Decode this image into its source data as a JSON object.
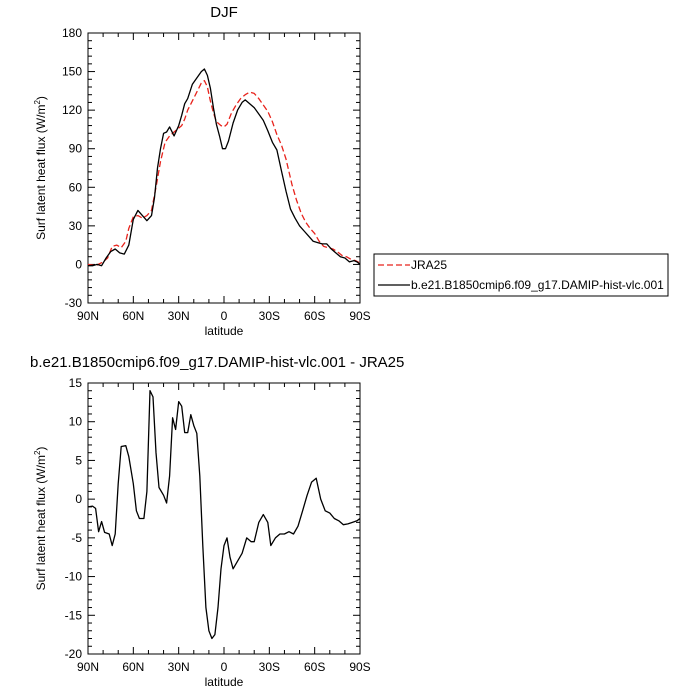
{
  "chart_data": [
    {
      "type": "line",
      "title": "DJF",
      "xlabel": "latitude",
      "ylabel": "Surf latent heat flux (W/m²)",
      "ylabel_main": "Surf latent heat flux (W/m",
      "ylabel_sup": "2",
      "ylabel_close": ")",
      "xlim": [
        90,
        -90
      ],
      "ylim": [
        -30,
        180
      ],
      "xticks": [
        90,
        60,
        30,
        0,
        -30,
        -60,
        -90
      ],
      "xtick_labels": [
        "90N",
        "60N",
        "30N",
        "0",
        "30S",
        "60S",
        "90S"
      ],
      "yticks": [
        -30,
        0,
        30,
        60,
        90,
        120,
        150,
        180
      ],
      "ytick_labels": [
        "-30",
        "0",
        "30",
        "60",
        "90",
        "120",
        "150",
        "180"
      ],
      "legend_position": "right",
      "series": [
        {
          "name": "JRA25",
          "color": "#e8231c",
          "dash": true,
          "points": [
            [
              90,
              0
            ],
            [
              85,
              -1
            ],
            [
              80,
              2
            ],
            [
              77,
              5
            ],
            [
              74,
              14
            ],
            [
              71,
              15
            ],
            [
              68,
              13
            ],
            [
              65,
              18
            ],
            [
              63,
              28
            ],
            [
              60,
              37
            ],
            [
              57,
              38
            ],
            [
              54,
              36
            ],
            [
              51,
              38
            ],
            [
              48,
              42
            ],
            [
              45,
              60
            ],
            [
              42,
              80
            ],
            [
              39,
              95
            ],
            [
              36,
              100
            ],
            [
              33,
              103
            ],
            [
              30,
              106
            ],
            [
              28,
              108
            ],
            [
              26,
              113
            ],
            [
              24,
              120
            ],
            [
              21,
              127
            ],
            [
              18,
              134
            ],
            [
              15,
              141
            ],
            [
              13,
              143
            ],
            [
              11,
              138
            ],
            [
              9,
              127
            ],
            [
              7,
              118
            ],
            [
              5,
              111
            ],
            [
              2,
              108
            ],
            [
              0,
              107
            ],
            [
              -2,
              109
            ],
            [
              -5,
              118
            ],
            [
              -8,
              124
            ],
            [
              -11,
              129
            ],
            [
              -14,
              132
            ],
            [
              -17,
              134
            ],
            [
              -20,
              133
            ],
            [
              -23,
              129
            ],
            [
              -26,
              124
            ],
            [
              -29,
              119
            ],
            [
              -32,
              111
            ],
            [
              -35,
              101
            ],
            [
              -38,
              93
            ],
            [
              -41,
              82
            ],
            [
              -45,
              62
            ],
            [
              -48,
              50
            ],
            [
              -51,
              40
            ],
            [
              -54,
              33
            ],
            [
              -57,
              28
            ],
            [
              -60,
              24
            ],
            [
              -63,
              18
            ],
            [
              -66,
              14
            ],
            [
              -69,
              13
            ],
            [
              -72,
              12
            ],
            [
              -75,
              10
            ],
            [
              -78,
              7
            ],
            [
              -81,
              6
            ],
            [
              -84,
              4
            ],
            [
              -87,
              3
            ],
            [
              -90,
              1
            ]
          ]
        },
        {
          "name": "b.e21.B1850cmip6.f09_g17.DAMIP-hist-vlc.001",
          "color": "#000000",
          "dash": false,
          "points": [
            [
              90,
              -1
            ],
            [
              87,
              -1
            ],
            [
              84,
              0
            ],
            [
              81,
              -1
            ],
            [
              78,
              5
            ],
            [
              75,
              10
            ],
            [
              72,
              12
            ],
            [
              69,
              9
            ],
            [
              66,
              8
            ],
            [
              63,
              15
            ],
            [
              60,
              35
            ],
            [
              57,
              42
            ],
            [
              54,
              38
            ],
            [
              51,
              34
            ],
            [
              48,
              38
            ],
            [
              46,
              52
            ],
            [
              44,
              75
            ],
            [
              42,
              90
            ],
            [
              40,
              102
            ],
            [
              38,
              103
            ],
            [
              36,
              107
            ],
            [
              33,
              100
            ],
            [
              30,
              108
            ],
            [
              28,
              116
            ],
            [
              26,
              125
            ],
            [
              24,
              129
            ],
            [
              21,
              140
            ],
            [
              18,
              145
            ],
            [
              15,
              150
            ],
            [
              13,
              152
            ],
            [
              11,
              147
            ],
            [
              9,
              137
            ],
            [
              7,
              122
            ],
            [
              5,
              109
            ],
            [
              3,
              100
            ],
            [
              1,
              90
            ],
            [
              -1,
              90
            ],
            [
              -3,
              96
            ],
            [
              -6,
              110
            ],
            [
              -9,
              120
            ],
            [
              -12,
              126
            ],
            [
              -14,
              128
            ],
            [
              -17,
              125
            ],
            [
              -20,
              122
            ],
            [
              -23,
              117
            ],
            [
              -26,
              112
            ],
            [
              -29,
              104
            ],
            [
              -32,
              95
            ],
            [
              -35,
              89
            ],
            [
              -38,
              73
            ],
            [
              -41,
              57
            ],
            [
              -44,
              43
            ],
            [
              -47,
              36
            ],
            [
              -50,
              30
            ],
            [
              -53,
              26
            ],
            [
              -56,
              22
            ],
            [
              -59,
              18
            ],
            [
              -62,
              17
            ],
            [
              -65,
              16
            ],
            [
              -68,
              16
            ],
            [
              -71,
              12
            ],
            [
              -74,
              9
            ],
            [
              -77,
              6
            ],
            [
              -80,
              5
            ],
            [
              -83,
              2
            ],
            [
              -86,
              3
            ],
            [
              -88,
              2
            ],
            [
              -90,
              0
            ]
          ]
        }
      ]
    },
    {
      "type": "line",
      "title": "b.e21.B1850cmip6.f09_g17.DAMIP-hist-vlc.001 - JRA25",
      "xlabel": "latitude",
      "ylabel": "Surf latent heat flux (W/m²)",
      "ylabel_main": "Surf latent heat flux (W/m",
      "ylabel_sup": "2",
      "ylabel_close": ")",
      "xlim": [
        90,
        -90
      ],
      "ylim": [
        -20,
        15
      ],
      "xticks": [
        90,
        60,
        30,
        0,
        -30,
        -60,
        -90
      ],
      "xtick_labels": [
        "90N",
        "60N",
        "30N",
        "0",
        "30S",
        "60S",
        "90S"
      ],
      "yticks": [
        -20,
        -15,
        -10,
        -5,
        0,
        5,
        10,
        15
      ],
      "ytick_labels": [
        "-20",
        "-15",
        "-10",
        "-5",
        "0",
        "5",
        "10",
        "15"
      ],
      "series": [
        {
          "color": "#000000",
          "dash": false,
          "points": [
            [
              90,
              -1.0
            ],
            [
              87,
              -0.9
            ],
            [
              85,
              -1.2
            ],
            [
              83,
              -4.2
            ],
            [
              81,
              -2.9
            ],
            [
              79,
              -4.3
            ],
            [
              76,
              -4.5
            ],
            [
              74,
              -6
            ],
            [
              72,
              -4.5
            ],
            [
              70,
              2
            ],
            [
              68,
              6.8
            ],
            [
              65,
              6.9
            ],
            [
              63,
              5.5
            ],
            [
              60,
              2
            ],
            [
              58,
              -1.5
            ],
            [
              56,
              -2.5
            ],
            [
              53,
              -2.5
            ],
            [
              51,
              1
            ],
            [
              49,
              14
            ],
            [
              47,
              13.2
            ],
            [
              45,
              6
            ],
            [
              43,
              1.5
            ],
            [
              40,
              0.5
            ],
            [
              38,
              -0.5
            ],
            [
              36,
              3
            ],
            [
              34,
              10.5
            ],
            [
              32,
              9
            ],
            [
              30,
              12.6
            ],
            [
              28,
              12
            ],
            [
              26,
              8.6
            ],
            [
              24,
              8.6
            ],
            [
              22,
              10.9
            ],
            [
              20,
              9.5
            ],
            [
              18,
              8.5
            ],
            [
              16,
              3
            ],
            [
              14,
              -6
            ],
            [
              12,
              -14
            ],
            [
              10,
              -17
            ],
            [
              8,
              -18
            ],
            [
              6,
              -17.5
            ],
            [
              4,
              -14
            ],
            [
              2,
              -9
            ],
            [
              0,
              -6
            ],
            [
              -2,
              -5
            ],
            [
              -4,
              -7.5
            ],
            [
              -6,
              -9
            ],
            [
              -9,
              -8
            ],
            [
              -12,
              -7
            ],
            [
              -15,
              -5
            ],
            [
              -18,
              -5.5
            ],
            [
              -20,
              -5.5
            ],
            [
              -23,
              -3
            ],
            [
              -26,
              -2
            ],
            [
              -29,
              -3
            ],
            [
              -31,
              -6
            ],
            [
              -34,
              -5
            ],
            [
              -37,
              -4.5
            ],
            [
              -40,
              -4.5
            ],
            [
              -43,
              -4.2
            ],
            [
              -46,
              -4.5
            ],
            [
              -49,
              -3.5
            ],
            [
              -52,
              -1.5
            ],
            [
              -55,
              0.5
            ],
            [
              -58,
              2.2
            ],
            [
              -61,
              2.7
            ],
            [
              -64,
              0
            ],
            [
              -67,
              -1.5
            ],
            [
              -70,
              -1.8
            ],
            [
              -73,
              -2.5
            ],
            [
              -76,
              -2.8
            ],
            [
              -79,
              -3.3
            ],
            [
              -82,
              -3.2
            ],
            [
              -85,
              -3
            ],
            [
              -88,
              -2.8
            ],
            [
              -90,
              -2.5
            ]
          ]
        }
      ]
    }
  ]
}
